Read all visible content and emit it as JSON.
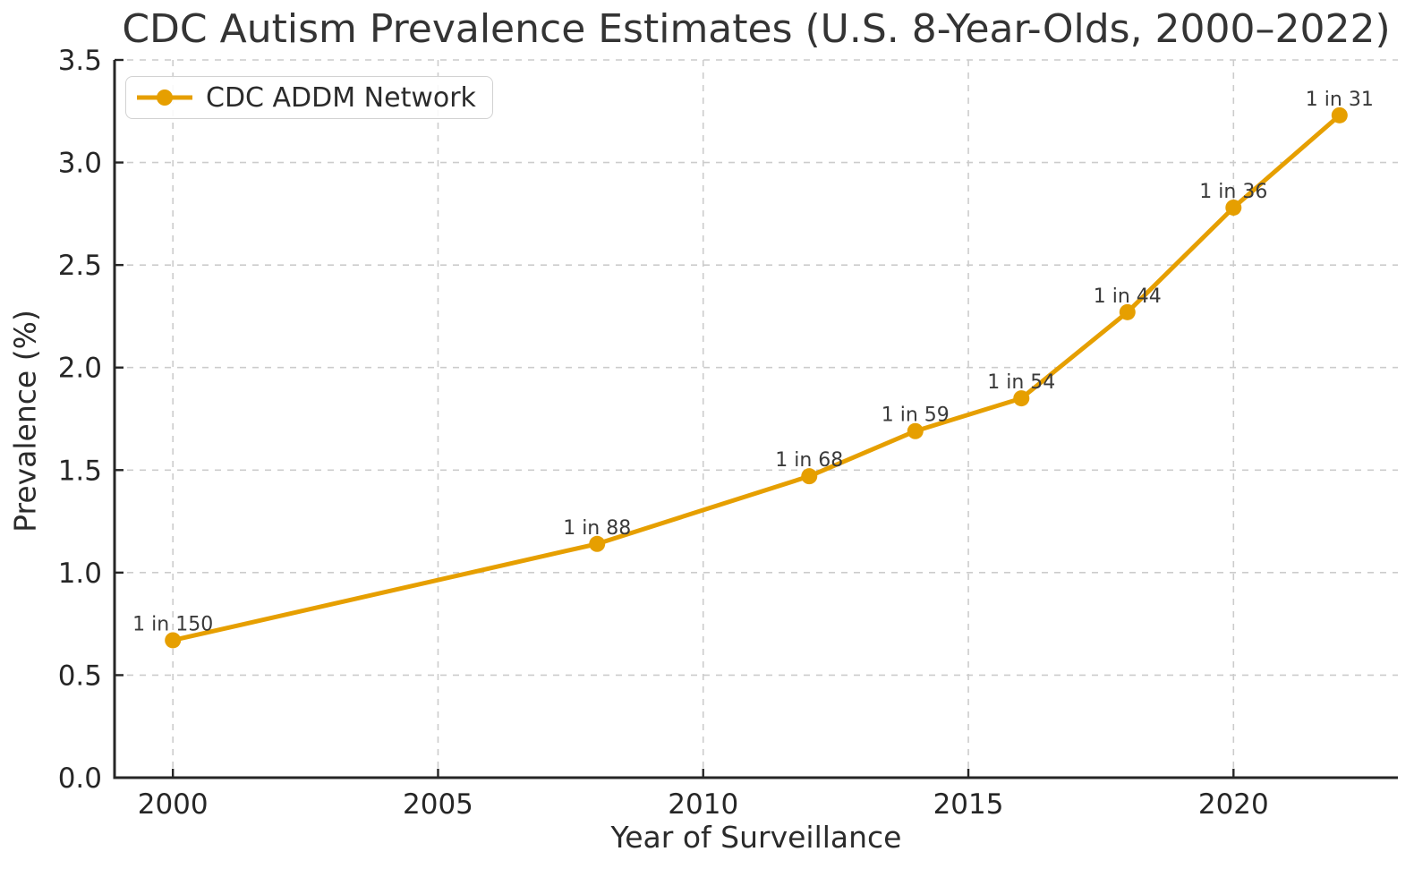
{
  "chart_data": {
    "type": "line",
    "title": "CDC Autism Prevalence Estimates (U.S. 8-Year-Olds, 2000–2022)",
    "xlabel": "Year of Surveillance",
    "ylabel": "Prevalence (%)",
    "legend_position": "upper-left",
    "grid": true,
    "xlim": [
      1998.9,
      2023.1
    ],
    "ylim": [
      0.0,
      3.5
    ],
    "x_ticks": [
      2000,
      2005,
      2010,
      2015,
      2020
    ],
    "y_ticks": [
      0.0,
      0.5,
      1.0,
      1.5,
      2.0,
      2.5,
      3.0,
      3.5
    ],
    "series": [
      {
        "name": "CDC ADDM Network",
        "color": "#E69F00",
        "x": [
          2000,
          2008,
          2012,
          2014,
          2016,
          2018,
          2020,
          2022
        ],
        "y": [
          0.67,
          1.14,
          1.47,
          1.69,
          1.85,
          2.27,
          2.78,
          3.23
        ],
        "point_labels": [
          "1 in 150",
          "1 in 88",
          "1 in 68",
          "1 in 59",
          "1 in 54",
          "1 in 44",
          "1 in 36",
          "1 in 31"
        ]
      }
    ],
    "colors": {
      "grid": "#cccccc",
      "spine": "#262626",
      "tick_text": "#262626",
      "annotation_text": "#3a3a3a",
      "background": "#ffffff"
    }
  }
}
